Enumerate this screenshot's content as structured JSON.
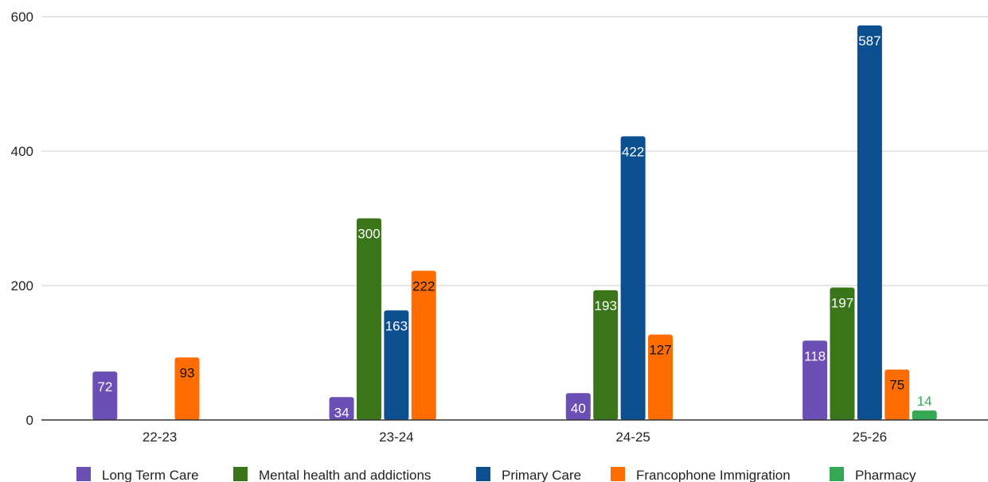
{
  "chart_data": {
    "type": "bar",
    "title": "",
    "xlabel": "",
    "ylabel": "",
    "ylim": [
      0,
      600
    ],
    "yticks": [
      0,
      200,
      400,
      600
    ],
    "grid": true,
    "legend_position": "bottom",
    "categories": [
      "22-23",
      "23-24",
      "24-25",
      "25-26"
    ],
    "series": [
      {
        "name": "Long Term Care",
        "color": "#6b4fb4",
        "label_color": "#ffffff",
        "values": [
          72,
          34,
          40,
          118
        ]
      },
      {
        "name": "Mental health and addictions",
        "color": "#3a7519",
        "label_color": "#ffffff",
        "values": [
          null,
          300,
          193,
          197
        ]
      },
      {
        "name": "Primary Care",
        "color": "#0b4f91",
        "label_color": "#ffffff",
        "values": [
          null,
          163,
          422,
          587
        ]
      },
      {
        "name": "Francophone Immigration",
        "color": "#ff6d00",
        "label_color": "#111111",
        "values": [
          93,
          222,
          127,
          75
        ]
      },
      {
        "name": "Pharmacy",
        "color": "#34a853",
        "label_color": "#34a853",
        "values": [
          null,
          null,
          null,
          14
        ]
      }
    ]
  }
}
